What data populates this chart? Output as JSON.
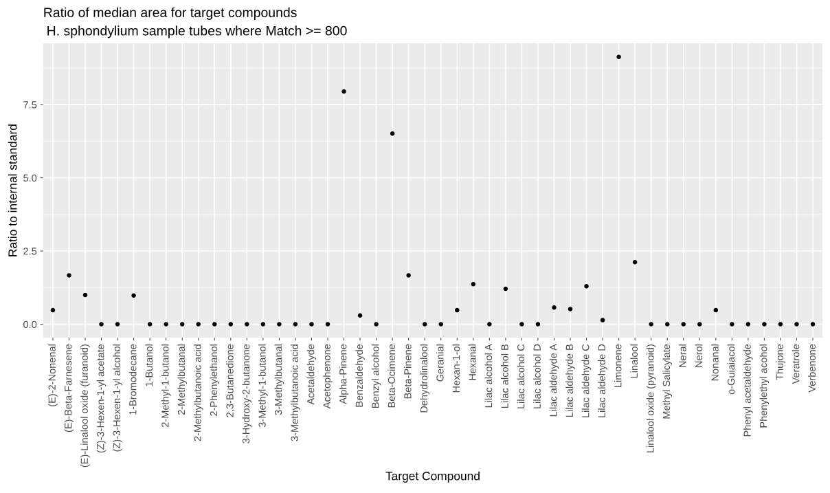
{
  "chart_data": {
    "type": "scatter",
    "title": "Ratio of median area for target compounds",
    "subtitle": "H. sphondylium sample tubes where Match >= 800",
    "xlabel": "Target Compound",
    "ylabel": "Ratio to internal standard",
    "categories": [
      "(E)-2-Nonenal",
      "(E)-Beta-Farnesene",
      "(E)-Linalool oxide (furanoid)",
      "(Z)-3-Hexen-1-yl acetate",
      "(Z)-3-Hexen-1-yl alcohol",
      "1-Bromodecane",
      "1-Butanol",
      "2-Methyl-1-butanol",
      "2-Methylbutanal",
      "2-Methylbutanoic acid",
      "2-Phenylethanol",
      "2,3-Butanedione",
      "3-Hydroxy-2-butanone",
      "3-Methyl-1-butanol",
      "3-Methylbutanal",
      "3-Methylbutanoic acid",
      "Acetaldehyde",
      "Acetophenone",
      "Alpha-Pinene",
      "Benzaldehyde",
      "Benzyl alcohol",
      "Beta-Ocimene",
      "Beta-Pinene",
      "Dehydrolinalool",
      "Geranial",
      "Hexan-1-ol",
      "Hexanal",
      "Lilac alcohol A",
      "Lilac alcohol B",
      "Lilac alcohol C",
      "Lilac alcohol D",
      "Lilac aldehyde A",
      "Lilac aldehyde B",
      "Lilac aldehyde C",
      "Lilac aldehyde D",
      "Limonene",
      "Linalool",
      "Linalool oxide (pyranoid)",
      "Methyl Salicylate",
      "Neral",
      "Nerol",
      "Nonanal",
      "o-Guiaiacol",
      "Phenyl acetaldehyde",
      "Phenylethyl acohol",
      "Thujone",
      "Veratrole",
      "Verbenone"
    ],
    "values": [
      0.48,
      1.67,
      1.0,
      0,
      0,
      0.98,
      0,
      0,
      0,
      0,
      0,
      0,
      0,
      0,
      0,
      0,
      0,
      0,
      7.95,
      0.3,
      0,
      6.51,
      1.67,
      0,
      0,
      0.48,
      1.37,
      0,
      1.21,
      0,
      0,
      0.57,
      0.52,
      1.3,
      0.14,
      9.13,
      2.12,
      0,
      0,
      0,
      0,
      0.48,
      0,
      0,
      0,
      0,
      0,
      0
    ],
    "color": "#000000",
    "marker": "circle",
    "ylim": [
      -0.46,
      9.59
    ],
    "yticks": [
      {
        "value": 0,
        "label": "0.0"
      },
      {
        "value": 2.5,
        "label": "2.5"
      },
      {
        "value": 5,
        "label": "5.0"
      },
      {
        "value": 7.5,
        "label": "7.5"
      }
    ],
    "grid": true,
    "legend": false
  }
}
